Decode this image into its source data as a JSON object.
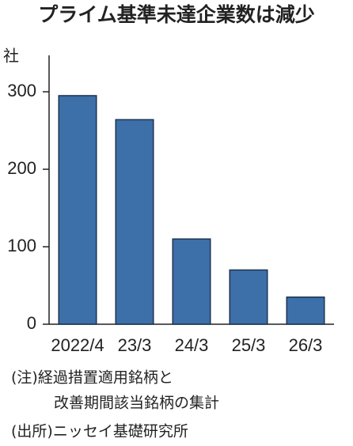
{
  "chart_data": {
    "type": "bar",
    "title": "プライム基準未達企業数は減少",
    "y_label": "社",
    "categories": [
      "2022/4",
      "23/3",
      "24/3",
      "25/3",
      "26/3"
    ],
    "values": [
      295,
      264,
      110,
      70,
      35
    ],
    "color": "#3d6fa8",
    "ylim": [
      0,
      347
    ],
    "yticks": [
      0,
      100,
      200,
      300
    ],
    "notes": [
      "(注)経過措置適用銘柄と",
      "改善期間該当銘柄の集計",
      "(出所)ニッセイ基礎研究所"
    ]
  }
}
